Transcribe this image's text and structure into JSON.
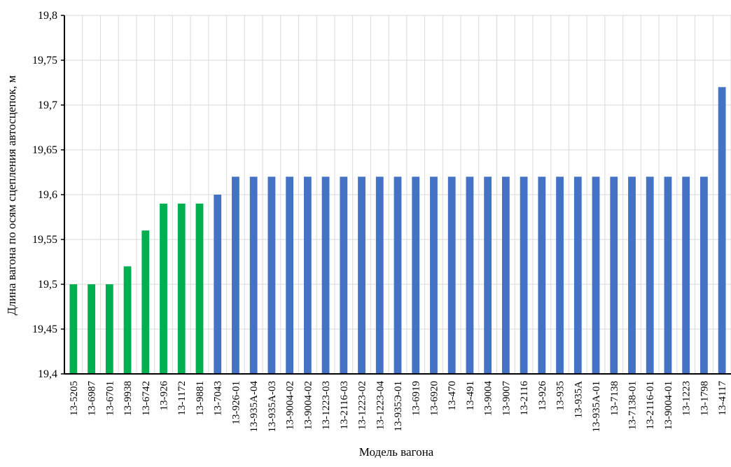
{
  "chart_data": {
    "type": "bar",
    "title": "",
    "xlabel": "Модель вагона",
    "ylabel": "Длина вагона по осям сцепления автосцепок, м",
    "ylim": [
      19.4,
      19.8
    ],
    "ytick_labels": [
      "19,4",
      "19,45",
      "19,5",
      "19,55",
      "19,6",
      "19,65",
      "19,7",
      "19,75",
      "19,8"
    ],
    "grid": true,
    "legend": "none",
    "colors": {
      "green": "#00b050",
      "blue": "#4472c4",
      "grid": "#d9d9d9",
      "axis": "#000000"
    },
    "categories": [
      "13-5205",
      "13-6987",
      "13-6701",
      "13-9938",
      "13-6742",
      "13-926",
      "13-1172",
      "13-9881",
      "13-7043",
      "13-926-01",
      "13-935А-04",
      "13-935А-03",
      "13-9004-02",
      "13-9004-02",
      "13-1223-03",
      "13-2116-03",
      "13-1223-02",
      "13-1223-04",
      "13-935Э-01",
      "13-6919",
      "13-6920",
      "13-470",
      "13-491",
      "13-9004",
      "13-9007",
      "13-2116",
      "13-926",
      "13-935",
      "13-935А",
      "13-935А-01",
      "13-7138",
      "13-7138-01",
      "13-2116-01",
      "13-9004-01",
      "13-1223",
      "13-1798",
      "13-4117"
    ],
    "values": [
      19.5,
      19.5,
      19.5,
      19.52,
      19.56,
      19.59,
      19.59,
      19.59,
      19.6,
      19.62,
      19.62,
      19.62,
      19.62,
      19.62,
      19.62,
      19.62,
      19.62,
      19.62,
      19.62,
      19.62,
      19.62,
      19.62,
      19.62,
      19.62,
      19.62,
      19.62,
      19.62,
      19.62,
      19.62,
      19.62,
      19.62,
      19.62,
      19.62,
      19.62,
      19.62,
      19.62,
      19.72
    ],
    "bar_colors": [
      "green",
      "green",
      "green",
      "green",
      "green",
      "green",
      "green",
      "green",
      "blue",
      "blue",
      "blue",
      "blue",
      "blue",
      "blue",
      "blue",
      "blue",
      "blue",
      "blue",
      "blue",
      "blue",
      "blue",
      "blue",
      "blue",
      "blue",
      "blue",
      "blue",
      "blue",
      "blue",
      "blue",
      "blue",
      "blue",
      "blue",
      "blue",
      "blue",
      "blue",
      "blue",
      "blue"
    ]
  }
}
